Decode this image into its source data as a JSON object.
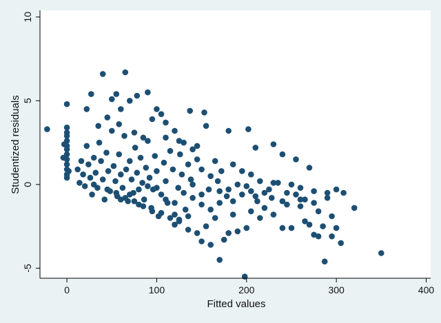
{
  "chart_data": {
    "type": "scatter",
    "title": "",
    "xlabel": "Fitted values",
    "ylabel": "Studentized residuals",
    "xlim": [
      -30,
      405
    ],
    "ylim": [
      -5.6,
      10.4
    ],
    "x_ticks": [
      0,
      100,
      200,
      300,
      400
    ],
    "y_ticks": [
      -5,
      0,
      5,
      10
    ],
    "x_tick_labels": [
      "0",
      "100",
      "200",
      "300",
      "400"
    ],
    "y_tick_labels": [
      "-5",
      "0",
      "5",
      "10"
    ],
    "grid": false,
    "legend": "none",
    "series": [
      {
        "marker_color": "#1d4f73",
        "points": [
          [
            -22,
            3.3
          ],
          [
            0,
            4.8
          ],
          [
            0,
            3.4
          ],
          [
            0,
            3.1
          ],
          [
            0,
            2.9
          ],
          [
            0,
            2.6
          ],
          [
            0,
            2.3
          ],
          [
            0,
            2.1
          ],
          [
            0,
            1.8
          ],
          [
            0,
            1.5
          ],
          [
            0,
            1.2
          ],
          [
            0,
            0.9
          ],
          [
            0,
            0.6
          ],
          [
            0,
            0.4
          ],
          [
            -3,
            2.4
          ],
          [
            2,
            0.8
          ],
          [
            -4,
            1.6
          ],
          [
            40,
            6.6
          ],
          [
            65,
            6.7
          ],
          [
            90,
            5.5
          ],
          [
            55,
            5.4
          ],
          [
            27,
            5.4
          ],
          [
            78,
            5.3
          ],
          [
            50,
            5.1
          ],
          [
            70,
            5.0
          ],
          [
            100,
            4.5
          ],
          [
            105,
            4.2
          ],
          [
            137,
            4.4
          ],
          [
            153,
            4.3
          ],
          [
            60,
            4.5
          ],
          [
            22,
            4.5
          ],
          [
            45,
            4.0
          ],
          [
            110,
            3.7
          ],
          [
            120,
            3.2
          ],
          [
            180,
            3.2
          ],
          [
            202,
            3.3
          ],
          [
            155,
            3.5
          ],
          [
            95,
            3.9
          ],
          [
            130,
            2.5
          ],
          [
            145,
            2.3
          ],
          [
            210,
            2.2
          ],
          [
            230,
            2.4
          ],
          [
            240,
            1.8
          ],
          [
            255,
            1.5
          ],
          [
            270,
            1.0
          ],
          [
            165,
            1.4
          ],
          [
            185,
            1.2
          ],
          [
            195,
            0.8
          ],
          [
            205,
            0.6
          ],
          [
            215,
            0.2
          ],
          [
            225,
            -0.3
          ],
          [
            235,
            0.1
          ],
          [
            245,
            -0.5
          ],
          [
            260,
            -0.2
          ],
          [
            275,
            -0.4
          ],
          [
            290,
            -0.8
          ],
          [
            300,
            -0.3
          ],
          [
            308,
            -0.5
          ],
          [
            320,
            -1.4
          ],
          [
            350,
            -4.1
          ],
          [
            287,
            -4.6
          ],
          [
            198,
            -5.5
          ],
          [
            170,
            -4.5
          ],
          [
            150,
            -3.4
          ],
          [
            160,
            -3.6
          ],
          [
            175,
            -3.3
          ],
          [
            180,
            -2.9
          ],
          [
            190,
            -2.8
          ],
          [
            200,
            -2.6
          ],
          [
            215,
            -2.0
          ],
          [
            230,
            -1.8
          ],
          [
            240,
            -2.6
          ],
          [
            250,
            -2.6
          ],
          [
            260,
            -1.3
          ],
          [
            265,
            -2.2
          ],
          [
            270,
            -2.4
          ],
          [
            275,
            -3.0
          ],
          [
            280,
            -3.1
          ],
          [
            285,
            -2.5
          ],
          [
            295,
            -3.1
          ],
          [
            300,
            -2.6
          ],
          [
            305,
            -3.5
          ],
          [
            145,
            -2.9
          ],
          [
            155,
            -2.5
          ],
          [
            135,
            -2.7
          ],
          [
            120,
            -2.4
          ],
          [
            125,
            -2.2
          ],
          [
            165,
            -2.0
          ],
          [
            185,
            -1.8
          ],
          [
            205,
            -1.6
          ],
          [
            220,
            -1.4
          ],
          [
            245,
            -1.2
          ],
          [
            260,
            -0.9
          ],
          [
            255,
            -0.6
          ],
          [
            240,
            -1.0
          ],
          [
            228,
            -0.8
          ],
          [
            212,
            -1.0
          ],
          [
            205,
            -0.4
          ],
          [
            195,
            -0.6
          ],
          [
            185,
            -1.0
          ],
          [
            178,
            -0.7
          ],
          [
            170,
            -0.4
          ],
          [
            168,
            0.2
          ],
          [
            172,
            0.8
          ],
          [
            160,
            0.5
          ],
          [
            158,
            -0.3
          ],
          [
            150,
            0.9
          ],
          [
            150,
            -1.2
          ],
          [
            145,
            1.5
          ],
          [
            140,
            -0.8
          ],
          [
            138,
            0.3
          ],
          [
            135,
            1.2
          ],
          [
            132,
            -1.5
          ],
          [
            128,
            0.6
          ],
          [
            126,
            1.8
          ],
          [
            124,
            -0.2
          ],
          [
            120,
            -1.8
          ],
          [
            118,
            0.9
          ],
          [
            115,
            2.0
          ],
          [
            112,
            -1.1
          ],
          [
            110,
            0.2
          ],
          [
            108,
            1.3
          ],
          [
            105,
            -0.6
          ],
          [
            102,
            -1.9
          ],
          [
            100,
            0.8
          ],
          [
            98,
            1.7
          ],
          [
            96,
            -0.3
          ],
          [
            94,
            -1.4
          ],
          [
            92,
            0.4
          ],
          [
            90,
            2.6
          ],
          [
            88,
            1.0
          ],
          [
            86,
            -0.9
          ],
          [
            84,
            0.1
          ],
          [
            82,
            1.6
          ],
          [
            80,
            -1.2
          ],
          [
            78,
            0.7
          ],
          [
            76,
            2.2
          ],
          [
            74,
            -0.5
          ],
          [
            72,
            0.3
          ],
          [
            70,
            1.4
          ],
          [
            68,
            -1.0
          ],
          [
            66,
            0.9
          ],
          [
            64,
            2.9
          ],
          [
            62,
            -0.2
          ],
          [
            60,
            0.6
          ],
          [
            58,
            1.8
          ],
          [
            56,
            -0.7
          ],
          [
            54,
            0.2
          ],
          [
            52,
            1.1
          ],
          [
            50,
            3.2
          ],
          [
            48,
            -0.4
          ],
          [
            46,
            0.8
          ],
          [
            44,
            1.9
          ],
          [
            42,
            -0.9
          ],
          [
            40,
            0.3
          ],
          [
            38,
            1.4
          ],
          [
            36,
            2.5
          ],
          [
            34,
            -0.2
          ],
          [
            32,
            0.7
          ],
          [
            30,
            1.6
          ],
          [
            28,
            -0.6
          ],
          [
            26,
            0.4
          ],
          [
            24,
            1.2
          ],
          [
            22,
            2.3
          ],
          [
            20,
            -0.1
          ],
          [
            18,
            0.6
          ],
          [
            16,
            1.4
          ],
          [
            14,
            0.1
          ],
          [
            12,
            0.9
          ],
          [
            35,
            3.5
          ],
          [
            75,
            3.1
          ],
          [
            85,
            2.8
          ],
          [
            58,
            3.6
          ],
          [
            110,
            2.8
          ],
          [
            125,
            2.6
          ],
          [
            140,
            2.1
          ],
          [
            30,
            0.0
          ],
          [
            45,
            -0.3
          ],
          [
            55,
            -0.5
          ],
          [
            65,
            -0.8
          ],
          [
            75,
            -1.0
          ],
          [
            85,
            -1.3
          ],
          [
            95,
            -1.6
          ],
          [
            105,
            -1.7
          ],
          [
            115,
            -2.0
          ],
          [
            125,
            -2.1
          ],
          [
            135,
            -1.9
          ],
          [
            60,
            -0.9
          ],
          [
            70,
            -0.6
          ],
          [
            80,
            -0.3
          ],
          [
            90,
            -0.1
          ],
          [
            100,
            -0.2
          ],
          [
            110,
            -0.9
          ],
          [
            120,
            -1.1
          ],
          [
            130,
            -0.5
          ],
          [
            140,
            0.0
          ],
          [
            150,
            -0.6
          ],
          [
            160,
            -1.5
          ],
          [
            170,
            -1.1
          ],
          [
            180,
            -0.3
          ],
          [
            190,
            0.0
          ],
          [
            200,
            -0.1
          ],
          [
            210,
            -0.7
          ],
          [
            220,
            -0.5
          ],
          [
            230,
            0.1
          ],
          [
            250,
            0.0
          ],
          [
            265,
            -0.9
          ],
          [
            280,
            -1.6
          ],
          [
            295,
            -1.9
          ],
          [
            290,
            -0.5
          ],
          [
            275,
            -1.1
          ]
        ]
      }
    ]
  }
}
